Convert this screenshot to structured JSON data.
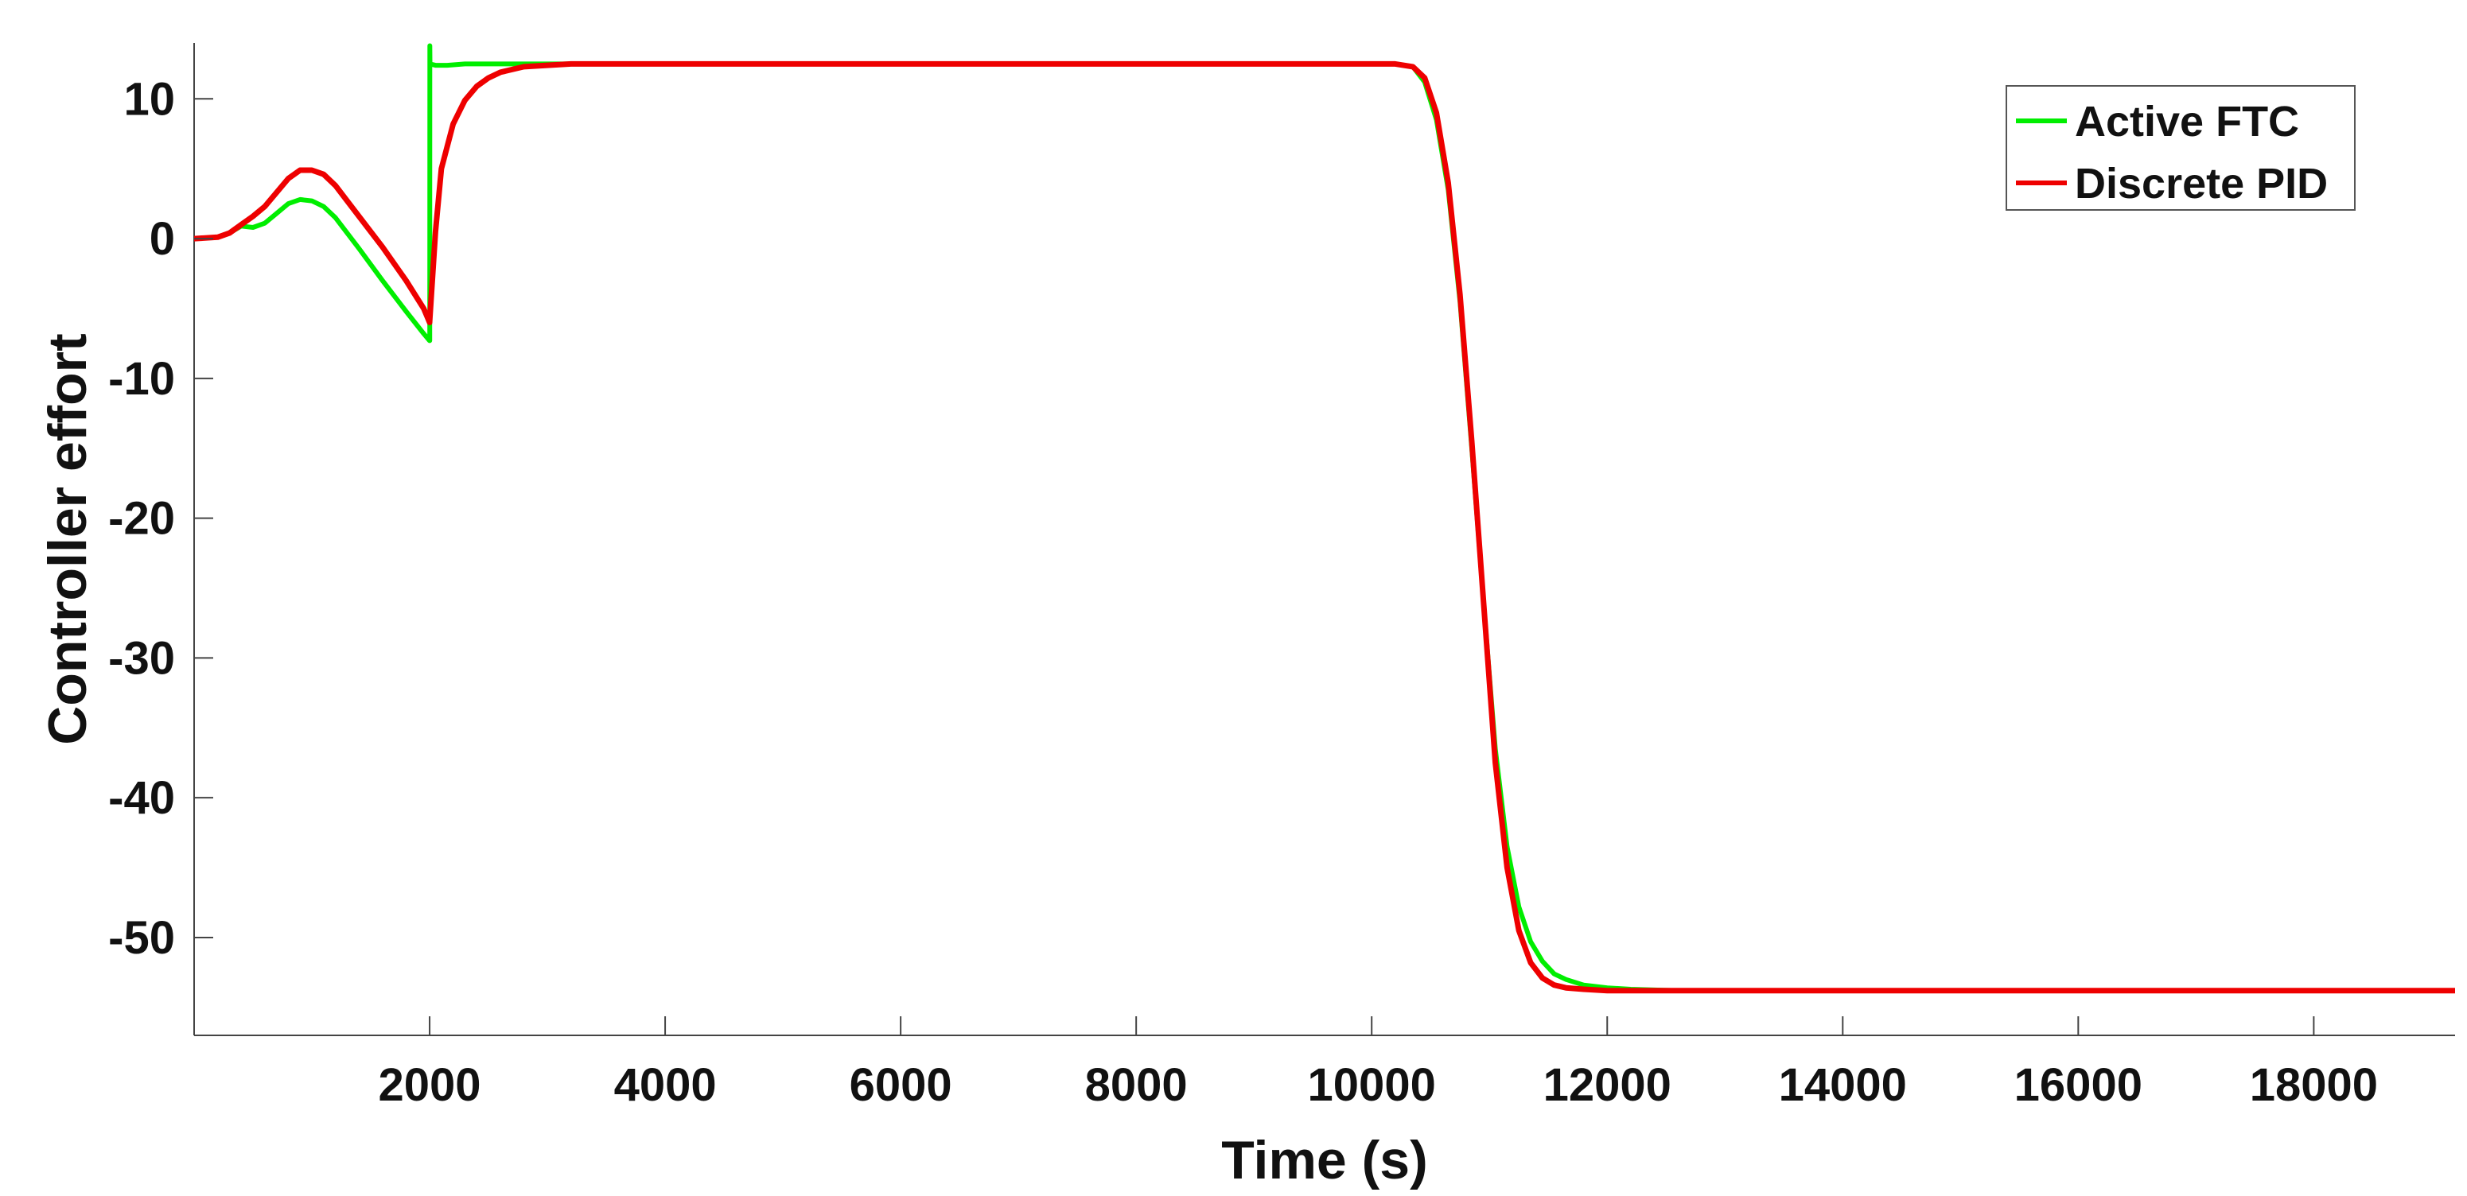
{
  "chart_data": {
    "type": "line",
    "title": "",
    "xlabel": "Time (s)",
    "ylabel": "Controller effort",
    "xlim": [
      0,
      19200
    ],
    "ylim": [
      -57,
      14
    ],
    "xticks": [
      2000,
      4000,
      6000,
      8000,
      10000,
      12000,
      14000,
      16000,
      18000
    ],
    "xtick_labels": [
      "2000",
      "4000",
      "6000",
      "8000",
      "10000",
      "12000",
      "14000",
      "16000",
      "18000"
    ],
    "yticks": [
      10,
      0,
      -10,
      -20,
      -30,
      -40,
      -50
    ],
    "ytick_labels": [
      "10",
      "0",
      "-10",
      "-20",
      "-30",
      "-40",
      "-50"
    ],
    "grid": false,
    "legend_position": "top-right",
    "series": [
      {
        "name": "Active FTC",
        "color": "#00ee00",
        "x": [
          0,
          200,
          300,
          400,
          500,
          600,
          700,
          800,
          900,
          1000,
          1100,
          1200,
          1400,
          1600,
          1800,
          1950,
          2000,
          2001,
          2002,
          2003,
          2050,
          2150,
          2300,
          2600,
          3000,
          10200,
          10350,
          10450,
          10550,
          10650,
          10750,
          10850,
          10950,
          11050,
          11150,
          11250,
          11350,
          11450,
          11550,
          11650,
          11800,
          12000,
          12200,
          12600,
          13000,
          19200
        ],
        "y": [
          0,
          0.1,
          0.4,
          0.9,
          0.8,
          1.1,
          1.8,
          2.5,
          2.8,
          2.7,
          2.3,
          1.5,
          -0.7,
          -3.0,
          -5.2,
          -6.8,
          -7.3,
          -7.3,
          13.8,
          12.5,
          12.4,
          12.4,
          12.5,
          12.5,
          12.5,
          12.5,
          12.3,
          11.2,
          8.5,
          3.5,
          -4.5,
          -15.0,
          -26.0,
          -36.5,
          -43.5,
          -47.8,
          -50.3,
          -51.7,
          -52.6,
          -53.0,
          -53.4,
          -53.6,
          -53.7,
          -53.8,
          -53.8,
          -53.8
        ]
      },
      {
        "name": "Discrete PID",
        "color": "#ee0000",
        "x": [
          0,
          200,
          300,
          400,
          500,
          600,
          700,
          800,
          900,
          1000,
          1100,
          1200,
          1400,
          1600,
          1800,
          1950,
          2000,
          2050,
          2100,
          2200,
          2300,
          2400,
          2500,
          2600,
          2800,
          3000,
          3200,
          10200,
          10350,
          10450,
          10550,
          10650,
          10750,
          10850,
          10950,
          11050,
          11150,
          11250,
          11350,
          11450,
          11550,
          11650,
          11800,
          12000,
          12300,
          13000,
          19200
        ],
        "y": [
          0,
          0.1,
          0.4,
          1.0,
          1.6,
          2.3,
          3.3,
          4.3,
          4.9,
          4.9,
          4.6,
          3.8,
          1.6,
          -0.6,
          -3.0,
          -5.0,
          -6.0,
          0.5,
          5.0,
          8.2,
          9.9,
          10.9,
          11.5,
          11.9,
          12.3,
          12.4,
          12.5,
          12.5,
          12.3,
          11.5,
          9.0,
          4.0,
          -4.0,
          -14.5,
          -26.0,
          -37.5,
          -45.0,
          -49.5,
          -51.8,
          -52.9,
          -53.4,
          -53.6,
          -53.7,
          -53.8,
          -53.8,
          -53.8,
          -53.8
        ]
      }
    ]
  }
}
